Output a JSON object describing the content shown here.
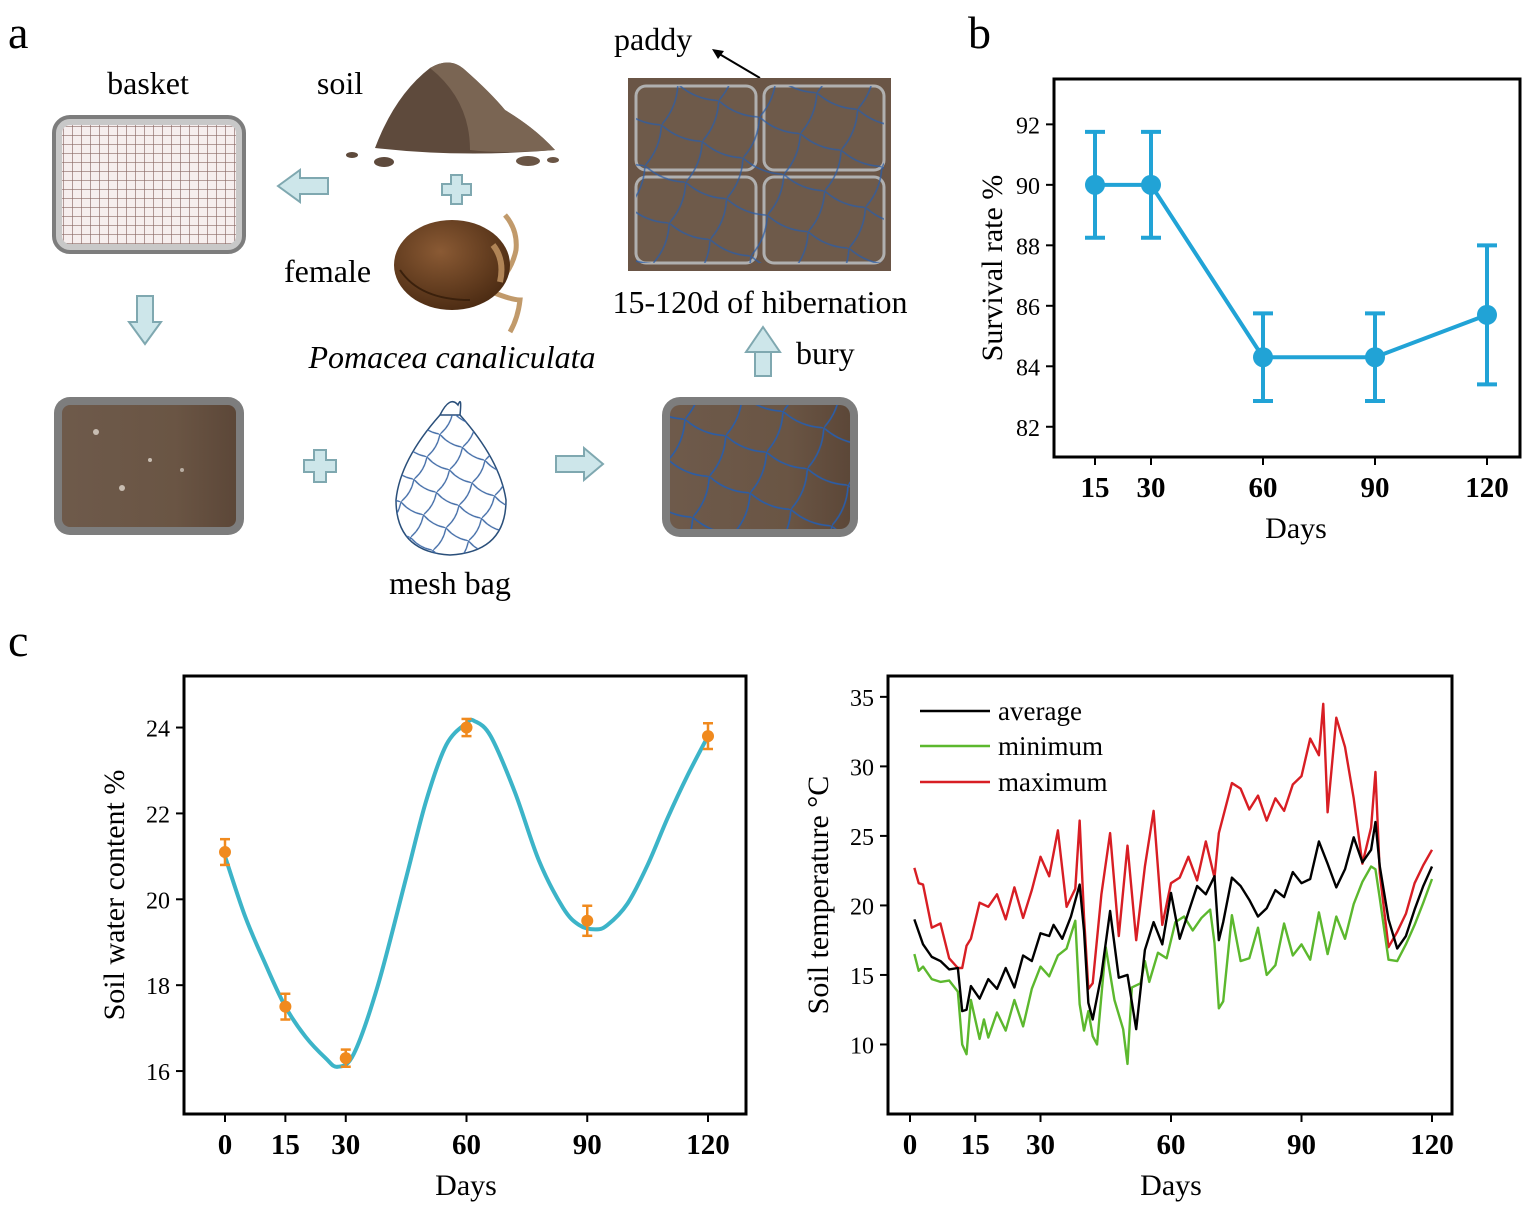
{
  "panels": {
    "a": "a",
    "b": "b",
    "c": "c"
  },
  "diagram": {
    "basket": "basket",
    "soil": "soil",
    "female": "female",
    "species": "Pomacea canaliculata",
    "mesh_bag": "mesh bag",
    "paddy": "paddy",
    "hibernation": "15-120d of hibernation",
    "bury": "bury"
  },
  "colors": {
    "survival": "#21a3d6",
    "water_curve": "#3cb4c8",
    "water_points": "#f08a1e",
    "average": "#000000",
    "minimum": "#5cb82e",
    "maximum": "#d81e24",
    "arrow_fill": "#cde6ea",
    "arrow_stroke": "#7fa8b0",
    "soil_brown": "#6b5545",
    "frame_gray": "#8a8a8a"
  },
  "chart_data": [
    {
      "id": "survival",
      "type": "line",
      "xlabel": "Days",
      "ylabel": "Survival rate %",
      "x": [
        15,
        30,
        60,
        90,
        120
      ],
      "xticks": [
        "15",
        "30",
        "60",
        "90",
        "120"
      ],
      "values": [
        90.0,
        90.0,
        84.3,
        84.3,
        85.7
      ],
      "errors": [
        1.75,
        1.75,
        1.45,
        1.45,
        2.3
      ],
      "ylim": [
        81.0,
        93.5
      ],
      "yticks": [
        "82",
        "84",
        "86",
        "88",
        "90",
        "92"
      ]
    },
    {
      "id": "water",
      "type": "line",
      "xlabel": "Days",
      "ylabel": "Soil water content %",
      "x": [
        0,
        15,
        30,
        60,
        90,
        120
      ],
      "xticks": [
        "0",
        "15",
        "30",
        "60",
        "90",
        "120"
      ],
      "values": [
        21.1,
        17.5,
        16.3,
        24.0,
        19.5,
        23.8
      ],
      "errors": [
        0.3,
        0.3,
        0.2,
        0.2,
        0.35,
        0.3
      ],
      "curve_x": [
        0,
        5,
        10,
        15,
        20,
        25,
        28,
        32,
        38,
        45,
        50,
        55,
        60,
        62,
        66,
        72,
        78,
        84,
        88,
        92,
        95,
        100,
        105,
        110,
        115,
        120
      ],
      "curve_y": [
        21.0,
        19.6,
        18.5,
        17.5,
        16.8,
        16.3,
        16.1,
        16.4,
        18.0,
        20.5,
        22.3,
        23.6,
        24.1,
        24.15,
        23.8,
        22.5,
        20.9,
        19.8,
        19.4,
        19.3,
        19.4,
        19.9,
        20.8,
        21.9,
        22.9,
        23.8
      ],
      "xlim": [
        -10,
        126
      ],
      "ylim": [
        15.0,
        25.2
      ],
      "yticks": [
        "16",
        "18",
        "20",
        "22",
        "24"
      ]
    },
    {
      "id": "temperature",
      "type": "line",
      "xlabel": "Days",
      "ylabel": "Soil temperature °C",
      "xticks": [
        "0",
        "15",
        "30",
        "60",
        "90",
        "120"
      ],
      "xlim": [
        -1,
        125
      ],
      "ylim": [
        5.0,
        36.5
      ],
      "yticks": [
        "10",
        "15",
        "20",
        "25",
        "30",
        "35"
      ],
      "legend_position": "top-left",
      "series": [
        {
          "name": "average",
          "x": [
            1,
            3,
            5,
            7,
            9,
            11,
            12,
            13,
            14,
            16,
            18,
            20,
            22,
            24,
            26,
            28,
            30,
            32,
            33,
            35,
            37,
            39,
            40,
            41,
            42,
            44,
            46,
            48,
            50,
            52,
            54,
            56,
            58,
            60,
            62,
            64,
            66,
            68,
            70,
            71,
            72,
            74,
            76,
            78,
            80,
            82,
            84,
            86,
            88,
            90,
            92,
            94,
            96,
            98,
            100,
            102,
            104,
            106,
            107,
            108,
            110,
            112,
            114,
            116,
            118,
            120
          ],
          "values": [
            19.0,
            17.2,
            16.3,
            16.0,
            15.4,
            15.5,
            12.4,
            12.5,
            14.2,
            13.3,
            14.7,
            14.0,
            15.5,
            14.1,
            16.4,
            16.0,
            18.0,
            17.8,
            18.6,
            17.6,
            19.2,
            21.5,
            18.2,
            13.0,
            11.8,
            15.0,
            19.6,
            14.8,
            15.0,
            11.1,
            16.8,
            18.8,
            17.2,
            20.9,
            17.6,
            19.5,
            21.4,
            20.8,
            22.1,
            17.5,
            18.8,
            22.0,
            21.4,
            20.4,
            19.2,
            19.8,
            21.1,
            20.6,
            22.4,
            21.6,
            21.9,
            24.6,
            23.0,
            21.3,
            22.6,
            24.9,
            23.1,
            24.0,
            26.0,
            22.8,
            19.0,
            16.9,
            17.8,
            19.7,
            21.4,
            22.8
          ]
        },
        {
          "name": "minimum",
          "x": [
            1,
            2,
            3,
            5,
            7,
            9,
            11,
            12,
            13,
            14,
            16,
            17,
            18,
            20,
            22,
            24,
            26,
            28,
            30,
            32,
            34,
            36,
            38,
            39,
            40,
            41,
            42,
            43,
            45,
            47,
            49,
            50,
            51,
            53,
            54,
            55,
            57,
            59,
            61,
            63,
            65,
            67,
            69,
            70,
            71,
            72,
            74,
            76,
            78,
            80,
            82,
            84,
            86,
            88,
            90,
            92,
            94,
            96,
            98,
            100,
            102,
            104,
            106,
            107,
            108,
            110,
            112,
            114,
            116,
            118,
            120
          ],
          "values": [
            16.5,
            15.3,
            15.6,
            14.7,
            14.5,
            14.6,
            13.8,
            10.0,
            9.3,
            13.2,
            10.4,
            11.8,
            10.5,
            12.3,
            11.0,
            13.2,
            11.3,
            14.0,
            15.6,
            14.9,
            16.4,
            16.9,
            18.9,
            12.9,
            11.0,
            12.4,
            10.6,
            10.0,
            17.0,
            13.2,
            11.1,
            8.6,
            14.1,
            14.4,
            16.0,
            14.5,
            16.6,
            16.2,
            18.8,
            19.2,
            18.2,
            19.1,
            19.7,
            17.3,
            12.6,
            13.1,
            19.3,
            16.0,
            16.2,
            18.4,
            15.0,
            15.7,
            18.7,
            16.4,
            17.2,
            16.1,
            19.5,
            16.5,
            19.2,
            17.6,
            20.1,
            21.7,
            22.8,
            22.6,
            20.5,
            16.1,
            16.0,
            17.2,
            18.6,
            20.2,
            21.9
          ]
        },
        {
          "name": "maximum",
          "x": [
            1,
            2,
            3,
            5,
            7,
            9,
            11,
            12,
            13,
            14,
            16,
            18,
            20,
            22,
            24,
            26,
            28,
            30,
            32,
            34,
            36,
            38,
            39,
            40,
            41,
            42,
            44,
            46,
            48,
            50,
            52,
            54,
            56,
            58,
            60,
            62,
            64,
            66,
            68,
            70,
            71,
            72,
            74,
            76,
            78,
            80,
            82,
            84,
            86,
            88,
            90,
            92,
            94,
            95,
            96,
            98,
            100,
            102,
            104,
            106,
            107,
            108,
            110,
            112,
            114,
            116,
            118,
            120
          ],
          "values": [
            22.7,
            21.6,
            21.5,
            18.4,
            18.7,
            16.2,
            15.5,
            15.5,
            17.1,
            17.6,
            20.2,
            19.9,
            20.8,
            19.0,
            21.3,
            19.1,
            21.1,
            23.5,
            22.1,
            25.4,
            19.9,
            21.2,
            26.1,
            19.2,
            14.0,
            14.4,
            20.8,
            25.2,
            17.8,
            24.3,
            17.5,
            22.8,
            26.8,
            18.6,
            21.6,
            22.0,
            23.5,
            21.8,
            24.6,
            22.0,
            25.2,
            26.4,
            28.8,
            28.4,
            26.9,
            27.9,
            26.1,
            27.7,
            26.8,
            28.7,
            29.3,
            32.0,
            30.8,
            34.5,
            26.7,
            33.5,
            31.4,
            27.7,
            23.0,
            25.6,
            29.6,
            22.3,
            17.0,
            18.1,
            19.4,
            21.6,
            22.9,
            24.0
          ]
        }
      ]
    }
  ]
}
